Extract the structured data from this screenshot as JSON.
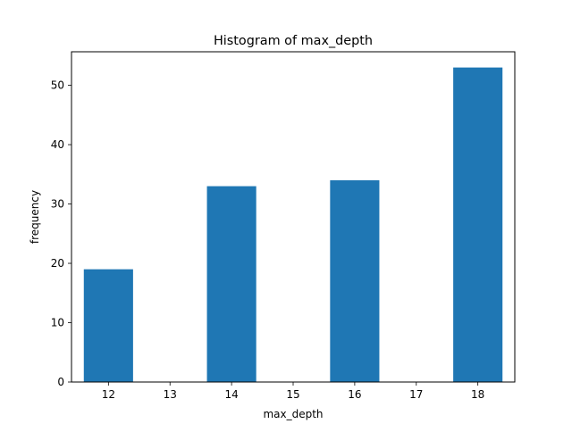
{
  "chart_data": {
    "type": "bar",
    "title": "Histogram of max_depth",
    "xlabel": "max_depth",
    "ylabel": "frequency",
    "bins": [
      {
        "center": 12,
        "value": 19
      },
      {
        "center": 14,
        "value": 33
      },
      {
        "center": 16,
        "value": 34
      },
      {
        "center": 18,
        "value": 53
      }
    ],
    "bin_width": 0.8,
    "xlim": [
      11.4,
      18.6
    ],
    "ylim": [
      0,
      55.65
    ],
    "xticks": [
      12,
      13,
      14,
      15,
      16,
      17,
      18
    ],
    "yticks": [
      0,
      10,
      20,
      30,
      40,
      50
    ],
    "grid": false,
    "legend": "none",
    "bar_color": "#1f77b4"
  }
}
